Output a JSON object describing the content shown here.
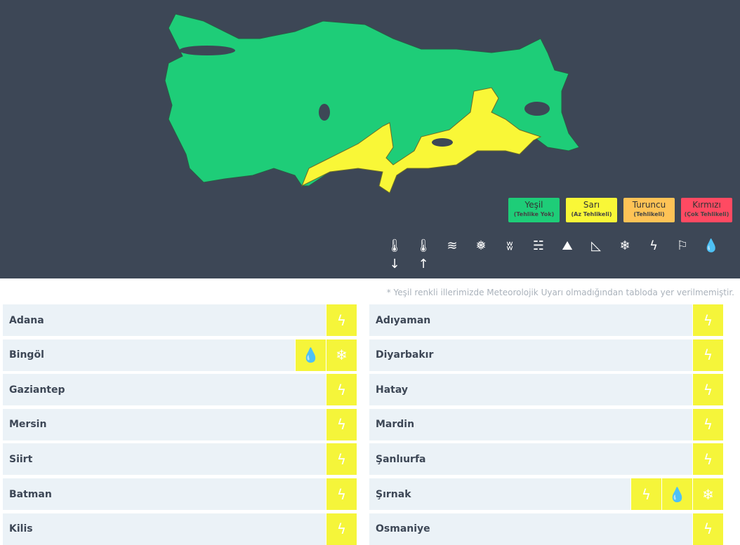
{
  "legend": [
    {
      "title": "Yeşil",
      "sub": "(Tehlike Yok)",
      "color": "#1ecd78"
    },
    {
      "title": "Sarı",
      "sub": "(Az Tehlikeli)",
      "color": "#f9f737"
    },
    {
      "title": "Turuncu",
      "sub": "(Tehlikeli)",
      "color": "#fec356"
    },
    {
      "title": "Kırmızı",
      "sub": "(Çok Tehlikeli)",
      "color": "#ff4a62"
    }
  ],
  "hazard_icons": [
    {
      "name": "cold-icon",
      "glyph": "🌡↓"
    },
    {
      "name": "hot-icon",
      "glyph": "🌡↑"
    },
    {
      "name": "fog-icon",
      "glyph": "≋"
    },
    {
      "name": "snowmelt-icon",
      "glyph": "❅"
    },
    {
      "name": "storm-icon",
      "glyph": "ʬ"
    },
    {
      "name": "dust-icon",
      "glyph": "☵"
    },
    {
      "name": "avalanche-icon",
      "glyph": "⛰"
    },
    {
      "name": "landslide-icon",
      "glyph": "◺"
    },
    {
      "name": "snow-icon",
      "glyph": "❄"
    },
    {
      "name": "thunder-icon",
      "glyph": "ϟ"
    },
    {
      "name": "wind-icon",
      "glyph": "⚐"
    },
    {
      "name": "rain-icon",
      "glyph": "💧"
    }
  ],
  "note": "* Yeşil renkli illerimizde Meteorolojik Uyarı olmadığından tabloda yer verilmemiştir.",
  "left": [
    {
      "name": "Adana",
      "icons": [
        "thunder"
      ]
    },
    {
      "name": "Bingöl",
      "icons": [
        "rain",
        "snow"
      ]
    },
    {
      "name": "Gaziantep",
      "icons": [
        "thunder"
      ]
    },
    {
      "name": "Mersin",
      "icons": [
        "thunder"
      ]
    },
    {
      "name": "Siirt",
      "icons": [
        "thunder"
      ]
    },
    {
      "name": "Batman",
      "icons": [
        "thunder"
      ]
    },
    {
      "name": "Kilis",
      "icons": [
        "thunder"
      ]
    }
  ],
  "right": [
    {
      "name": "Adıyaman",
      "icons": [
        "thunder"
      ]
    },
    {
      "name": "Diyarbakır",
      "icons": [
        "thunder"
      ]
    },
    {
      "name": "Hatay",
      "icons": [
        "thunder"
      ]
    },
    {
      "name": "Mardin",
      "icons": [
        "thunder"
      ]
    },
    {
      "name": "Şanlıurfa",
      "icons": [
        "thunder"
      ]
    },
    {
      "name": "Şırnak",
      "icons": [
        "thunder",
        "rain",
        "snow"
      ]
    },
    {
      "name": "Osmaniye",
      "icons": [
        "thunder"
      ]
    }
  ],
  "warning_color": "#f5f53a"
}
